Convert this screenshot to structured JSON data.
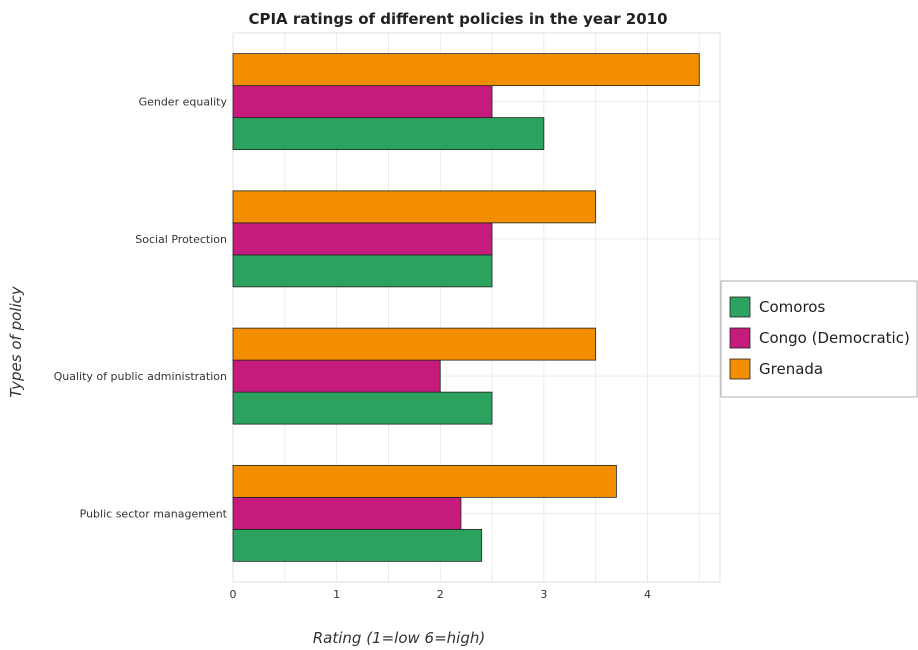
{
  "chart_data": {
    "type": "bar",
    "orientation": "horizontal",
    "title": "CPIA ratings of different policies in the year 2010",
    "xlabel": "Rating (1=low 6=high)",
    "ylabel": "Types of policy",
    "xlim": [
      0,
      4.7
    ],
    "xticks": [
      0,
      1,
      2,
      3,
      4
    ],
    "grid": true,
    "legend_position": "right",
    "categories": [
      "Gender equality",
      "Social Protection",
      "Quality of public administration",
      "Public sector management"
    ],
    "series": [
      {
        "name": "Comoros",
        "color": "#2ca25f",
        "values": [
          3.0,
          2.5,
          2.5,
          2.4
        ]
      },
      {
        "name": "Congo (Democratic)",
        "color": "#c51b7d",
        "values": [
          2.5,
          2.5,
          2.0,
          2.2
        ]
      },
      {
        "name": "Grenada",
        "color": "#f28e00",
        "values": [
          4.5,
          3.5,
          3.5,
          3.7
        ]
      }
    ]
  }
}
